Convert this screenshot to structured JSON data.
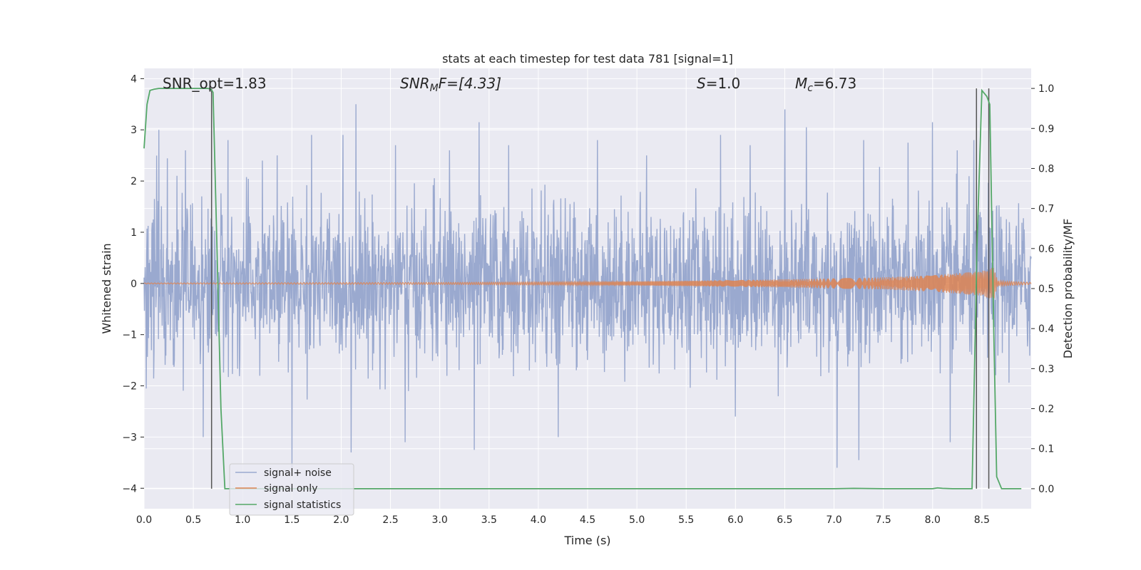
{
  "chart_data": {
    "type": "line",
    "title": "stats at each timestep for test data 781 [signal=1]",
    "xlabel": "Time (s)",
    "ylabel": "Whitened strain",
    "ylabel_right": "Detection probability/MF",
    "xlim": [
      0.0,
      9.0
    ],
    "ylim": [
      -4.4,
      4.2
    ],
    "ylim_right": [
      -0.05,
      1.05
    ],
    "x_ticks": [
      "0.0",
      "0.5",
      "1.0",
      "1.5",
      "2.0",
      "2.5",
      "3.0",
      "3.5",
      "4.0",
      "4.5",
      "5.0",
      "5.5",
      "6.0",
      "6.5",
      "7.0",
      "7.5",
      "8.0",
      "8.5"
    ],
    "y_ticks": [
      "4",
      "3",
      "2",
      "1",
      "0",
      "−1",
      "−2",
      "−3",
      "−4"
    ],
    "y_ticks_right": [
      "1.0",
      "0.9",
      "0.8",
      "0.7",
      "0.6",
      "0.5",
      "0.4",
      "0.3",
      "0.2",
      "0.1",
      "0.0"
    ],
    "grid": true,
    "legend_placement": "lower-left",
    "annotations": {
      "snr_opt": "SNR_opt=1.83",
      "snr_mf_base": "SNR",
      "snr_mf_sub": "M",
      "snr_mf_rest": "F=[4.33]",
      "s_italic": "S",
      "s_rest": "=1.0",
      "mc_base": "M",
      "mc_sub": "c",
      "mc_rest": "=6.73"
    },
    "series": [
      {
        "name": "signal+ noise",
        "color": "#9aa9cf",
        "axis": "left",
        "x_range": [
          0.0,
          9.0
        ],
        "amplitude_std": 0.75,
        "peaks": [
          [
            0.15,
            3.0
          ],
          [
            0.42,
            2.6
          ],
          [
            0.85,
            2.8
          ],
          [
            1.2,
            2.4
          ],
          [
            1.35,
            2.5
          ],
          [
            1.7,
            2.9
          ],
          [
            2.15,
            3.5
          ],
          [
            2.55,
            2.7
          ],
          [
            3.1,
            2.6
          ],
          [
            3.4,
            3.15
          ],
          [
            3.7,
            2.7
          ],
          [
            4.2,
            2.6
          ],
          [
            4.6,
            2.8
          ],
          [
            5.1,
            2.5
          ],
          [
            5.85,
            2.9
          ],
          [
            6.15,
            2.7
          ],
          [
            6.5,
            3.4
          ],
          [
            6.72,
            3.05
          ],
          [
            7.3,
            2.8
          ],
          [
            7.75,
            2.75
          ],
          [
            8.0,
            3.15
          ],
          [
            8.25,
            2.6
          ],
          [
            8.42,
            2.8
          ],
          [
            0.6,
            -3.0
          ],
          [
            1.5,
            -3.6
          ],
          [
            2.1,
            -3.3
          ],
          [
            2.65,
            -3.1
          ],
          [
            3.35,
            -3.25
          ],
          [
            4.2,
            -3.0
          ],
          [
            6.0,
            -2.6
          ],
          [
            7.03,
            -3.6
          ],
          [
            7.25,
            -3.45
          ],
          [
            8.18,
            -3.1
          ]
        ]
      },
      {
        "name": "signal only",
        "color": "#dd8452",
        "axis": "left",
        "x_range": [
          0.0,
          9.0
        ],
        "envelope": [
          [
            0.0,
            0.01
          ],
          [
            3.0,
            0.02
          ],
          [
            5.0,
            0.04
          ],
          [
            6.5,
            0.08
          ],
          [
            7.5,
            0.12
          ],
          [
            8.0,
            0.16
          ],
          [
            8.5,
            0.24
          ],
          [
            8.62,
            0.32
          ],
          [
            8.66,
            0.05
          ],
          [
            9.0,
            0.02
          ]
        ]
      },
      {
        "name": "signal statistics",
        "color": "#55a868",
        "axis": "right",
        "x": [
          0.0,
          0.03,
          0.06,
          0.1,
          0.15,
          0.2,
          0.3,
          0.4,
          0.5,
          0.6,
          0.65,
          0.68,
          0.7,
          0.74,
          0.78,
          0.82,
          0.9,
          1.0,
          2.0,
          3.0,
          4.0,
          5.0,
          6.0,
          7.0,
          7.2,
          7.5,
          7.8,
          8.0,
          8.05,
          8.1,
          8.2,
          8.3,
          8.4,
          8.45,
          8.5,
          8.55,
          8.58,
          8.62,
          8.65,
          8.7,
          8.8,
          8.9
        ],
        "y": [
          0.85,
          0.96,
          0.995,
          0.998,
          1.0,
          1.0,
          1.0,
          1.0,
          1.0,
          1.0,
          1.0,
          0.998,
          0.99,
          0.6,
          0.2,
          0.0,
          0.0,
          0.0,
          0.0,
          0.0,
          0.0,
          0.0,
          0.0,
          0.0,
          0.001,
          0.0,
          0.0,
          0.0,
          0.002,
          0.001,
          0.0,
          0.0,
          0.0,
          0.6,
          0.995,
          0.98,
          0.96,
          0.4,
          0.03,
          0.0,
          0.0,
          0.0
        ]
      }
    ],
    "vertical_lines": {
      "color": "#555555",
      "axis": "right",
      "segments": [
        [
          0.685,
          0.0,
          1.0
        ],
        [
          8.445,
          0.0,
          1.0
        ],
        [
          8.57,
          0.0,
          1.0
        ]
      ]
    }
  }
}
